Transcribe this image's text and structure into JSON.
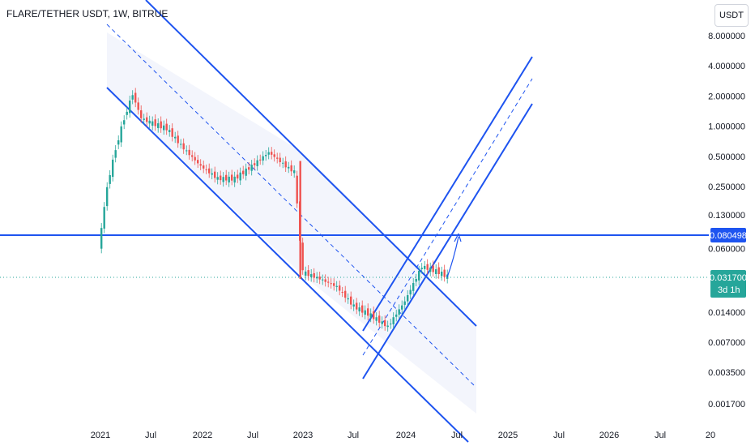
{
  "header": {
    "symbol": "FLARE/TETHER USDT, 1W, BITRUE",
    "currency": "USDT"
  },
  "colors": {
    "line_blue": "#1e54f0",
    "channel_fill": "#eef1fb",
    "up": "#26a69a",
    "down": "#ef5350",
    "price_line": "#26a69a"
  },
  "chart_data": {
    "type": "candlestick",
    "y_scale": "log",
    "y_ticks": [
      "8.000000",
      "4.000000",
      "2.000000",
      "1.000000",
      "0.500000",
      "0.250000",
      "0.130000",
      "0.060000",
      "0.014000",
      "0.007000",
      "0.003500",
      "0.001700"
    ],
    "x_ticks": [
      "2021",
      "Jul",
      "2022",
      "Jul",
      "2023",
      "Jul",
      "2024",
      "Jul",
      "2025",
      "Jul",
      "2026",
      "Jul",
      "20"
    ],
    "horizontal_level": {
      "value": 0.080498,
      "label": "0.080498"
    },
    "last_price": {
      "value": 0.0317,
      "label": "0.031700",
      "countdown": "3d 1h"
    },
    "grid": false,
    "series": [
      {
        "date": "2021-01",
        "price": 0.06
      },
      {
        "date": "2021-02",
        "price": 0.25
      },
      {
        "date": "2021-03",
        "price": 0.6
      },
      {
        "date": "2021-04",
        "price": 1.2
      },
      {
        "date": "2021-05",
        "price": 2.1
      },
      {
        "date": "2021-06",
        "price": 1.2
      },
      {
        "date": "2021-07",
        "price": 1.1
      },
      {
        "date": "2021-09",
        "price": 0.95
      },
      {
        "date": "2021-11",
        "price": 0.6
      },
      {
        "date": "2022-01",
        "price": 0.4
      },
      {
        "date": "2022-03",
        "price": 0.3
      },
      {
        "date": "2022-05",
        "price": 0.3
      },
      {
        "date": "2022-07",
        "price": 0.4
      },
      {
        "date": "2022-09",
        "price": 0.55
      },
      {
        "date": "2022-11",
        "price": 0.4
      },
      {
        "date": "2022-12",
        "price": 0.35
      },
      {
        "date": "2023-01",
        "price": 0.035
      },
      {
        "date": "2023-03",
        "price": 0.03
      },
      {
        "date": "2023-05",
        "price": 0.025
      },
      {
        "date": "2023-07",
        "price": 0.016
      },
      {
        "date": "2023-09",
        "price": 0.013
      },
      {
        "date": "2023-11",
        "price": 0.01
      },
      {
        "date": "2024-01",
        "price": 0.018
      },
      {
        "date": "2024-03",
        "price": 0.04
      },
      {
        "date": "2024-05",
        "price": 0.035
      },
      {
        "date": "2024-06",
        "price": 0.0317
      }
    ]
  }
}
